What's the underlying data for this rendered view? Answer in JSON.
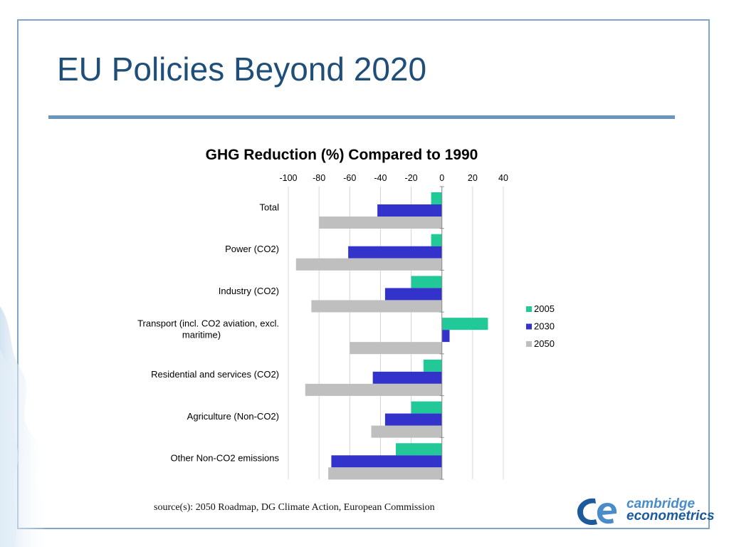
{
  "slide": {
    "title": "EU Policies Beyond 2020",
    "source": "source(s): 2050 Roadmap, DG Climate Action, European Commission"
  },
  "logo": {
    "line1": "cambridge",
    "line2": "econometrics",
    "mark": "ce-logo-mark"
  },
  "colors": {
    "frame": "#7fa6c9",
    "title": "#1f4e79",
    "rule": "#6c95bd",
    "series_2005": "#20c997",
    "series_2030": "#3333cc",
    "series_2050": "#bfbfbf"
  },
  "chart_data": {
    "type": "bar",
    "orientation": "horizontal",
    "title": "GHG Reduction (%) Compared to 1990",
    "xlabel": "",
    "ylabel": "",
    "xlim": [
      -100,
      40
    ],
    "xticks": [
      "-100",
      "-80",
      "-60",
      "-40",
      "-20",
      "0",
      "20",
      "40"
    ],
    "x_axis_position": "top",
    "gridlines": true,
    "legend_position": "right",
    "categories": [
      [
        "Total"
      ],
      [
        "Power (CO2)"
      ],
      [
        "Industry (CO2)"
      ],
      [
        "Transport (incl. CO2 aviation, excl.",
        "maritime)"
      ],
      [
        "Residential and services (CO2)"
      ],
      [
        "Agriculture (Non-CO2)"
      ],
      [
        "Other Non-CO2 emissions"
      ]
    ],
    "series": [
      {
        "name": "2005",
        "color": "#20c997",
        "values": [
          -7,
          -7,
          -20,
          30,
          -12,
          -20,
          -30
        ]
      },
      {
        "name": "2030",
        "color": "#3333cc",
        "values": [
          -42,
          -61,
          -37,
          5,
          -45,
          -37,
          -72
        ]
      },
      {
        "name": "2050",
        "color": "#bfbfbf",
        "values": [
          -80,
          -95,
          -85,
          -60,
          -89,
          -46,
          -74
        ]
      }
    ]
  }
}
